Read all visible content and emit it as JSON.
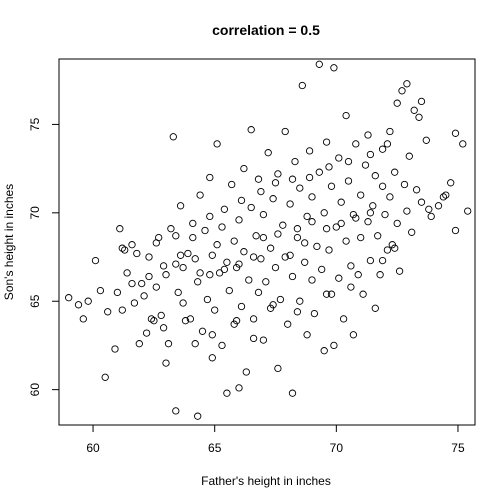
{
  "chart_data": {
    "type": "scatter",
    "title": "correlation = 0.5",
    "xlabel": "Father's height in inches",
    "ylabel": "Son's height in inches",
    "xlim": [
      58.6,
      75.7
    ],
    "ylim": [
      58.0,
      78.7
    ],
    "xticks": [
      60,
      65,
      70,
      75
    ],
    "yticks": [
      60,
      65,
      70,
      75
    ],
    "grid": false,
    "legend": "none",
    "marker": "open-circle",
    "series": [
      {
        "points": [
          [
            59.0,
            65.2
          ],
          [
            59.4,
            64.8
          ],
          [
            59.6,
            64.0
          ],
          [
            59.8,
            65.0
          ],
          [
            60.1,
            67.3
          ],
          [
            60.3,
            65.6
          ],
          [
            60.5,
            60.7
          ],
          [
            60.6,
            64.4
          ],
          [
            60.9,
            62.3
          ],
          [
            61.0,
            65.5
          ],
          [
            61.1,
            69.1
          ],
          [
            61.2,
            64.5
          ],
          [
            61.2,
            68.0
          ],
          [
            61.4,
            66.6
          ],
          [
            61.6,
            68.2
          ],
          [
            61.7,
            64.9
          ],
          [
            61.8,
            67.7
          ],
          [
            61.9,
            62.6
          ],
          [
            62.0,
            66.0
          ],
          [
            62.1,
            65.3
          ],
          [
            62.2,
            63.2
          ],
          [
            62.3,
            67.5
          ],
          [
            62.4,
            64.0
          ],
          [
            62.5,
            63.9
          ],
          [
            62.6,
            65.8
          ],
          [
            62.7,
            68.6
          ],
          [
            62.8,
            64.2
          ],
          [
            62.9,
            63.5
          ],
          [
            63.0,
            61.5
          ],
          [
            63.0,
            66.5
          ],
          [
            63.1,
            62.6
          ],
          [
            63.2,
            69.1
          ],
          [
            63.3,
            74.3
          ],
          [
            63.4,
            58.8
          ],
          [
            63.4,
            67.1
          ],
          [
            63.5,
            65.5
          ],
          [
            63.6,
            70.4
          ],
          [
            63.7,
            64.9
          ],
          [
            63.8,
            63.9
          ],
          [
            63.9,
            67.7
          ],
          [
            64.0,
            64.0
          ],
          [
            64.1,
            68.6
          ],
          [
            64.2,
            62.6
          ],
          [
            64.3,
            58.5
          ],
          [
            64.3,
            66.1
          ],
          [
            64.4,
            71.0
          ],
          [
            64.5,
            63.3
          ],
          [
            64.6,
            69.0
          ],
          [
            64.7,
            65.1
          ],
          [
            64.8,
            72.0
          ],
          [
            64.9,
            61.8
          ],
          [
            64.9,
            67.6
          ],
          [
            65.0,
            64.5
          ],
          [
            65.1,
            73.9
          ],
          [
            65.1,
            68.2
          ],
          [
            65.2,
            66.6
          ],
          [
            65.3,
            62.5
          ],
          [
            65.4,
            70.2
          ],
          [
            65.5,
            59.8
          ],
          [
            65.5,
            67.2
          ],
          [
            65.6,
            65.6
          ],
          [
            65.7,
            71.6
          ],
          [
            65.8,
            63.7
          ],
          [
            65.8,
            68.4
          ],
          [
            65.9,
            66.9
          ],
          [
            66.0,
            60.1
          ],
          [
            66.0,
            69.6
          ],
          [
            66.1,
            64.7
          ],
          [
            66.2,
            72.5
          ],
          [
            66.2,
            67.8
          ],
          [
            66.3,
            61.0
          ],
          [
            66.4,
            66.2
          ],
          [
            66.5,
            74.7
          ],
          [
            66.5,
            70.3
          ],
          [
            66.6,
            64.0
          ],
          [
            66.7,
            68.7
          ],
          [
            66.8,
            65.5
          ],
          [
            66.8,
            71.9
          ],
          [
            66.9,
            67.4
          ],
          [
            67.0,
            62.8
          ],
          [
            67.0,
            69.9
          ],
          [
            67.1,
            66.1
          ],
          [
            67.2,
            73.4
          ],
          [
            67.3,
            64.6
          ],
          [
            67.3,
            68.0
          ],
          [
            67.4,
            70.8
          ],
          [
            67.5,
            66.9
          ],
          [
            67.6,
            61.2
          ],
          [
            67.6,
            72.2
          ],
          [
            67.7,
            65.1
          ],
          [
            67.8,
            69.3
          ],
          [
            67.9,
            74.6
          ],
          [
            67.9,
            67.5
          ],
          [
            68.0,
            63.7
          ],
          [
            68.1,
            70.5
          ],
          [
            68.2,
            66.4
          ],
          [
            68.2,
            59.8
          ],
          [
            68.3,
            72.9
          ],
          [
            68.4,
            68.6
          ],
          [
            68.5,
            65.0
          ],
          [
            68.5,
            71.4
          ],
          [
            68.6,
            77.2
          ],
          [
            68.7,
            67.2
          ],
          [
            68.8,
            63.1
          ],
          [
            68.8,
            69.8
          ],
          [
            68.9,
            73.5
          ],
          [
            69.0,
            66.2
          ],
          [
            69.0,
            70.9
          ],
          [
            69.1,
            64.3
          ],
          [
            69.2,
            68.1
          ],
          [
            69.3,
            78.4
          ],
          [
            69.3,
            72.3
          ],
          [
            69.4,
            66.8
          ],
          [
            69.5,
            62.2
          ],
          [
            69.5,
            70.0
          ],
          [
            69.6,
            74.0
          ],
          [
            69.7,
            67.9
          ],
          [
            69.8,
            65.4
          ],
          [
            69.8,
            71.5
          ],
          [
            69.9,
            78.2
          ],
          [
            69.9,
            62.5
          ],
          [
            70.0,
            69.2
          ],
          [
            70.1,
            73.1
          ],
          [
            70.1,
            66.3
          ],
          [
            70.2,
            70.6
          ],
          [
            70.3,
            64.0
          ],
          [
            70.4,
            68.4
          ],
          [
            70.4,
            75.5
          ],
          [
            70.5,
            71.8
          ],
          [
            70.6,
            67.0
          ],
          [
            70.7,
            63.1
          ],
          [
            70.7,
            69.9
          ],
          [
            70.8,
            73.9
          ],
          [
            70.9,
            66.5
          ],
          [
            71.0,
            71.0
          ],
          [
            71.0,
            68.6
          ],
          [
            71.1,
            65.4
          ],
          [
            71.2,
            72.7
          ],
          [
            71.3,
            69.5
          ],
          [
            71.3,
            74.4
          ],
          [
            71.4,
            67.3
          ],
          [
            71.5,
            70.4
          ],
          [
            71.6,
            64.6
          ],
          [
            71.6,
            72.1
          ],
          [
            71.7,
            68.7
          ],
          [
            71.8,
            66.5
          ],
          [
            71.9,
            71.5
          ],
          [
            71.9,
            73.6
          ],
          [
            72.0,
            69.9
          ],
          [
            72.1,
            67.9
          ],
          [
            72.2,
            74.6
          ],
          [
            72.2,
            70.9
          ],
          [
            72.3,
            68.2
          ],
          [
            72.4,
            72.3
          ],
          [
            72.5,
            76.2
          ],
          [
            72.5,
            69.4
          ],
          [
            72.6,
            66.7
          ],
          [
            72.7,
            76.9
          ],
          [
            72.8,
            71.6
          ],
          [
            72.9,
            77.3
          ],
          [
            72.9,
            70.1
          ],
          [
            73.0,
            73.2
          ],
          [
            73.1,
            68.9
          ],
          [
            73.2,
            75.8
          ],
          [
            73.3,
            71.3
          ],
          [
            73.4,
            75.4
          ],
          [
            73.5,
            76.3
          ],
          [
            73.5,
            70.6
          ],
          [
            73.7,
            74.1
          ],
          [
            73.9,
            69.8
          ],
          [
            74.2,
            70.4
          ],
          [
            74.5,
            71.0
          ],
          [
            74.7,
            71.7
          ],
          [
            74.9,
            69.0
          ],
          [
            74.9,
            74.5
          ],
          [
            75.2,
            73.9
          ],
          [
            75.4,
            70.1
          ],
          [
            74.4,
            70.9
          ],
          [
            73.8,
            70.2
          ],
          [
            72.4,
            68.0
          ],
          [
            71.9,
            67.3
          ],
          [
            70.6,
            65.8
          ],
          [
            69.6,
            65.4
          ],
          [
            68.4,
            64.4
          ],
          [
            67.4,
            64.8
          ],
          [
            66.6,
            62.9
          ],
          [
            65.9,
            63.9
          ],
          [
            64.9,
            63.1
          ],
          [
            64.4,
            66.6
          ],
          [
            63.7,
            66.9
          ],
          [
            62.9,
            67.0
          ],
          [
            62.3,
            66.4
          ],
          [
            61.6,
            66.0
          ],
          [
            61.3,
            67.9
          ],
          [
            62.6,
            68.3
          ],
          [
            63.4,
            68.7
          ],
          [
            64.1,
            69.4
          ],
          [
            64.8,
            69.8
          ],
          [
            65.3,
            69.2
          ],
          [
            66.1,
            70.7
          ],
          [
            66.9,
            71.2
          ],
          [
            67.5,
            71.7
          ],
          [
            68.2,
            71.9
          ],
          [
            68.9,
            72.0
          ],
          [
            69.7,
            72.6
          ],
          [
            70.5,
            72.9
          ],
          [
            71.4,
            73.3
          ],
          [
            72.1,
            73.9
          ],
          [
            67.0,
            68.6
          ],
          [
            67.6,
            68.8
          ],
          [
            68.1,
            67.6
          ],
          [
            68.7,
            68.3
          ],
          [
            66.6,
            67.5
          ],
          [
            66.0,
            67.1
          ],
          [
            65.4,
            66.8
          ],
          [
            64.8,
            66.5
          ],
          [
            64.2,
            67.4
          ],
          [
            63.6,
            67.6
          ],
          [
            68.4,
            69.1
          ],
          [
            69.0,
            69.5
          ],
          [
            69.6,
            69.1
          ],
          [
            70.2,
            69.4
          ],
          [
            70.8,
            69.7
          ],
          [
            71.4,
            70.0
          ]
        ]
      }
    ]
  }
}
